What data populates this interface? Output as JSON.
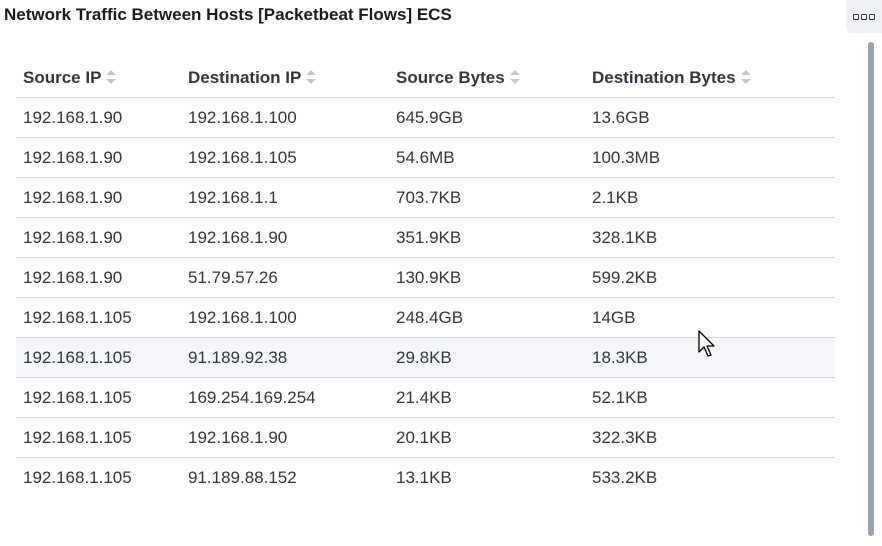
{
  "panel": {
    "title": "Network Traffic Between Hosts [Packetbeat Flows] ECS"
  },
  "table": {
    "columns": [
      {
        "label": "Source IP"
      },
      {
        "label": "Destination IP"
      },
      {
        "label": "Source Bytes"
      },
      {
        "label": "Destination Bytes"
      }
    ],
    "rows": [
      [
        "192.168.1.90",
        "192.168.1.100",
        "645.9GB",
        "13.6GB"
      ],
      [
        "192.168.1.90",
        "192.168.1.105",
        "54.6MB",
        "100.3MB"
      ],
      [
        "192.168.1.90",
        "192.168.1.1",
        "703.7KB",
        "2.1KB"
      ],
      [
        "192.168.1.90",
        "192.168.1.90",
        "351.9KB",
        "328.1KB"
      ],
      [
        "192.168.1.90",
        "51.79.57.26",
        "130.9KB",
        "599.2KB"
      ],
      [
        "192.168.1.105",
        "192.168.1.100",
        "248.4GB",
        "14GB"
      ],
      [
        "192.168.1.105",
        "91.189.92.38",
        "29.8KB",
        "18.3KB"
      ],
      [
        "192.168.1.105",
        "169.254.169.254",
        "21.4KB",
        "52.1KB"
      ],
      [
        "192.168.1.105",
        "192.168.1.90",
        "20.1KB",
        "322.3KB"
      ],
      [
        "192.168.1.105",
        "91.189.88.152",
        "13.1KB",
        "533.2KB"
      ]
    ]
  },
  "icons": {
    "options": "ellipsis-icon",
    "sort": "sort-icon",
    "cursor": "mouse-pointer-icon"
  },
  "colors": {
    "border": "#d3dae6",
    "hover_row": "#f5f7fa",
    "text": "#343741"
  }
}
